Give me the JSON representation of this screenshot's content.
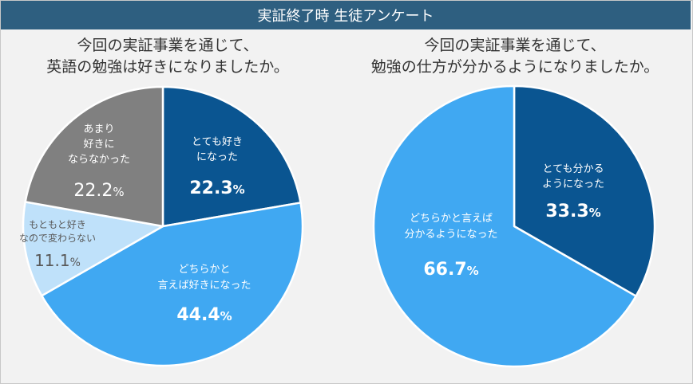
{
  "header": {
    "title": "実証終了時 生徒アンケート"
  },
  "chart_data": [
    {
      "type": "pie",
      "title_lines": [
        "今回の実証事業を通じて、",
        "英語の勉強は好きになりましたか。"
      ],
      "slices": [
        {
          "label_lines": [
            "とても好き",
            "になった"
          ],
          "value": 22.3,
          "value_text": "22.3",
          "unit": "%",
          "color": "#0a5591",
          "text_color": "#ffffff"
        },
        {
          "label_lines": [
            "どちらかと",
            "言えば好きになった"
          ],
          "value": 44.4,
          "value_text": "44.4",
          "unit": "%",
          "color": "#40a8f2",
          "text_color": "#ffffff"
        },
        {
          "label_lines": [
            "もともと好き",
            "なので変わらない"
          ],
          "value": 11.1,
          "value_text": "11.1",
          "unit": "%",
          "color": "#bfe1fa",
          "text_color": "#595959"
        },
        {
          "label_lines": [
            "あまり",
            "好きに",
            "ならなかった"
          ],
          "value": 22.2,
          "value_text": "22.2",
          "unit": "%",
          "color": "#808080",
          "text_color": "#ffffff"
        }
      ]
    },
    {
      "type": "pie",
      "title_lines": [
        "今回の実証事業を通じて、",
        "勉強の仕方が分かるようになりましたか。"
      ],
      "slices": [
        {
          "label_lines": [
            "とても分かる",
            "ようになった"
          ],
          "value": 33.3,
          "value_text": "33.3",
          "unit": "%",
          "color": "#0a5591",
          "text_color": "#ffffff"
        },
        {
          "label_lines": [
            "どちらかと言えば",
            "分かるようになった"
          ],
          "value": 66.7,
          "value_text": "66.7",
          "unit": "%",
          "color": "#40a8f2",
          "text_color": "#ffffff"
        }
      ]
    }
  ]
}
